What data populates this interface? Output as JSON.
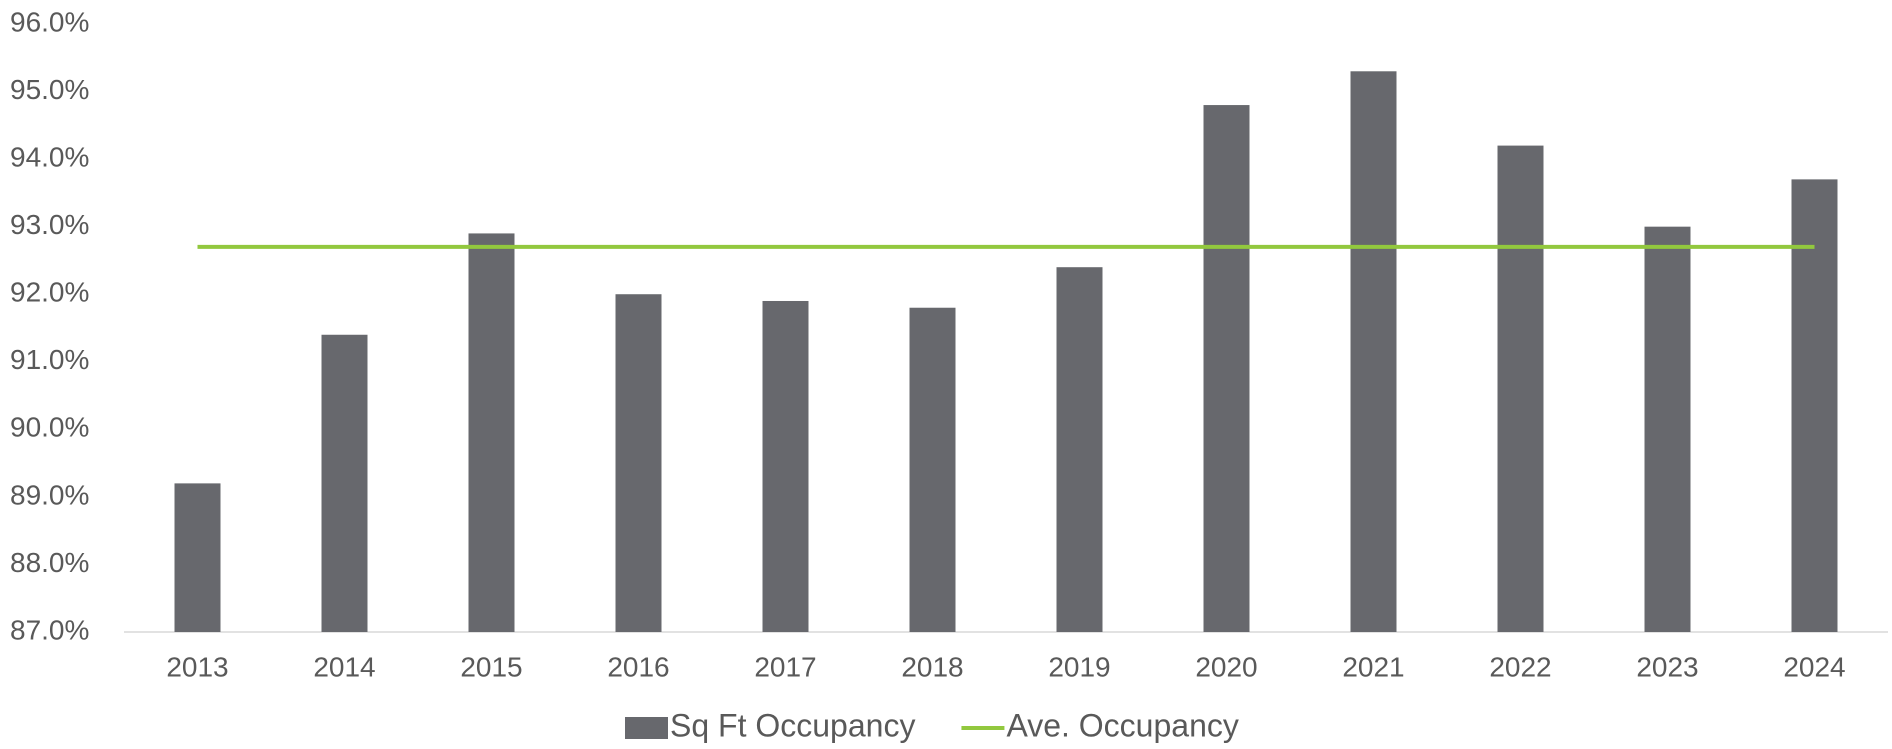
{
  "chart_data": {
    "type": "bar",
    "categories": [
      "2013",
      "2014",
      "2015",
      "2016",
      "2017",
      "2018",
      "2019",
      "2020",
      "2021",
      "2022",
      "2023",
      "2024"
    ],
    "series": [
      {
        "name": "Sq Ft Occupancy",
        "type": "bar",
        "color": "#67686d",
        "values": [
          89.2,
          91.4,
          92.9,
          92.0,
          91.9,
          91.8,
          92.4,
          94.8,
          95.3,
          94.2,
          93.0,
          93.7
        ]
      },
      {
        "name": "Ave. Occupancy",
        "type": "line",
        "color": "#92c83e",
        "values": [
          92.7,
          92.7,
          92.7,
          92.7,
          92.7,
          92.7,
          92.7,
          92.7,
          92.7,
          92.7,
          92.7,
          92.7
        ]
      }
    ],
    "ylim": [
      87,
      96
    ],
    "yticks": [
      {
        "value": 87,
        "label": "87.0%"
      },
      {
        "value": 88,
        "label": "88.0%"
      },
      {
        "value": 89,
        "label": "89.0%"
      },
      {
        "value": 90,
        "label": "90.0%"
      },
      {
        "value": 91,
        "label": "91.0%"
      },
      {
        "value": 92,
        "label": "92.0%"
      },
      {
        "value": 93,
        "label": "93.0%"
      },
      {
        "value": 94,
        "label": "94.0%"
      },
      {
        "value": 95,
        "label": "95.0%"
      },
      {
        "value": 96,
        "label": "96.0%"
      }
    ],
    "grid": false,
    "legend": "bottom"
  }
}
